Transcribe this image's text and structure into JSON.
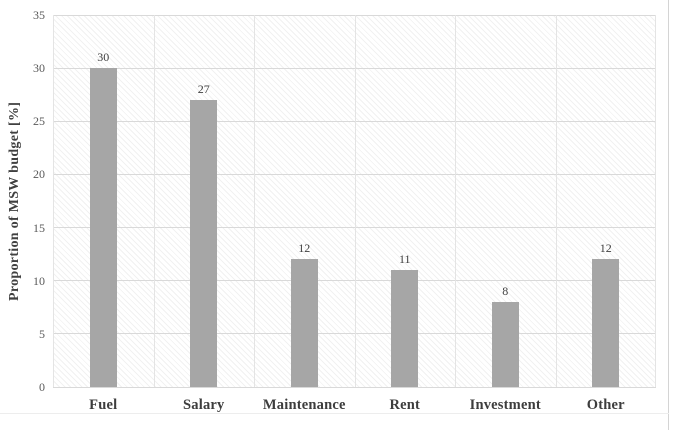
{
  "chart_data": {
    "type": "bar",
    "title": "",
    "xlabel": "",
    "ylabel": "Proportion of MSW budget [%]",
    "categories": [
      "Fuel",
      "Salary",
      "Maintenance",
      "Rent",
      "Investment",
      "Other"
    ],
    "values": [
      30,
      27,
      12,
      11,
      8,
      12
    ],
    "data_labels": [
      "30",
      "27",
      "12",
      "11",
      "8",
      "12"
    ],
    "ylim": [
      0,
      35
    ],
    "yticks": [
      0,
      5,
      10,
      15,
      20,
      25,
      30,
      35
    ],
    "grid": "horizontal gridlines at each y tick, light vertical separators between categories",
    "legend": "none",
    "plot_background": "light diagonal hatch pattern"
  },
  "colors": {
    "bar": "#a6a6a6",
    "horizontal_gridline": "#d9d9d9",
    "vertical_gridline": "#e4e4e4",
    "tick_text": "#595959",
    "value_label_text": "#404040",
    "category_text": "#3d3d3d",
    "axis_title_text": "#404040",
    "figure_background": "#ffffff"
  }
}
